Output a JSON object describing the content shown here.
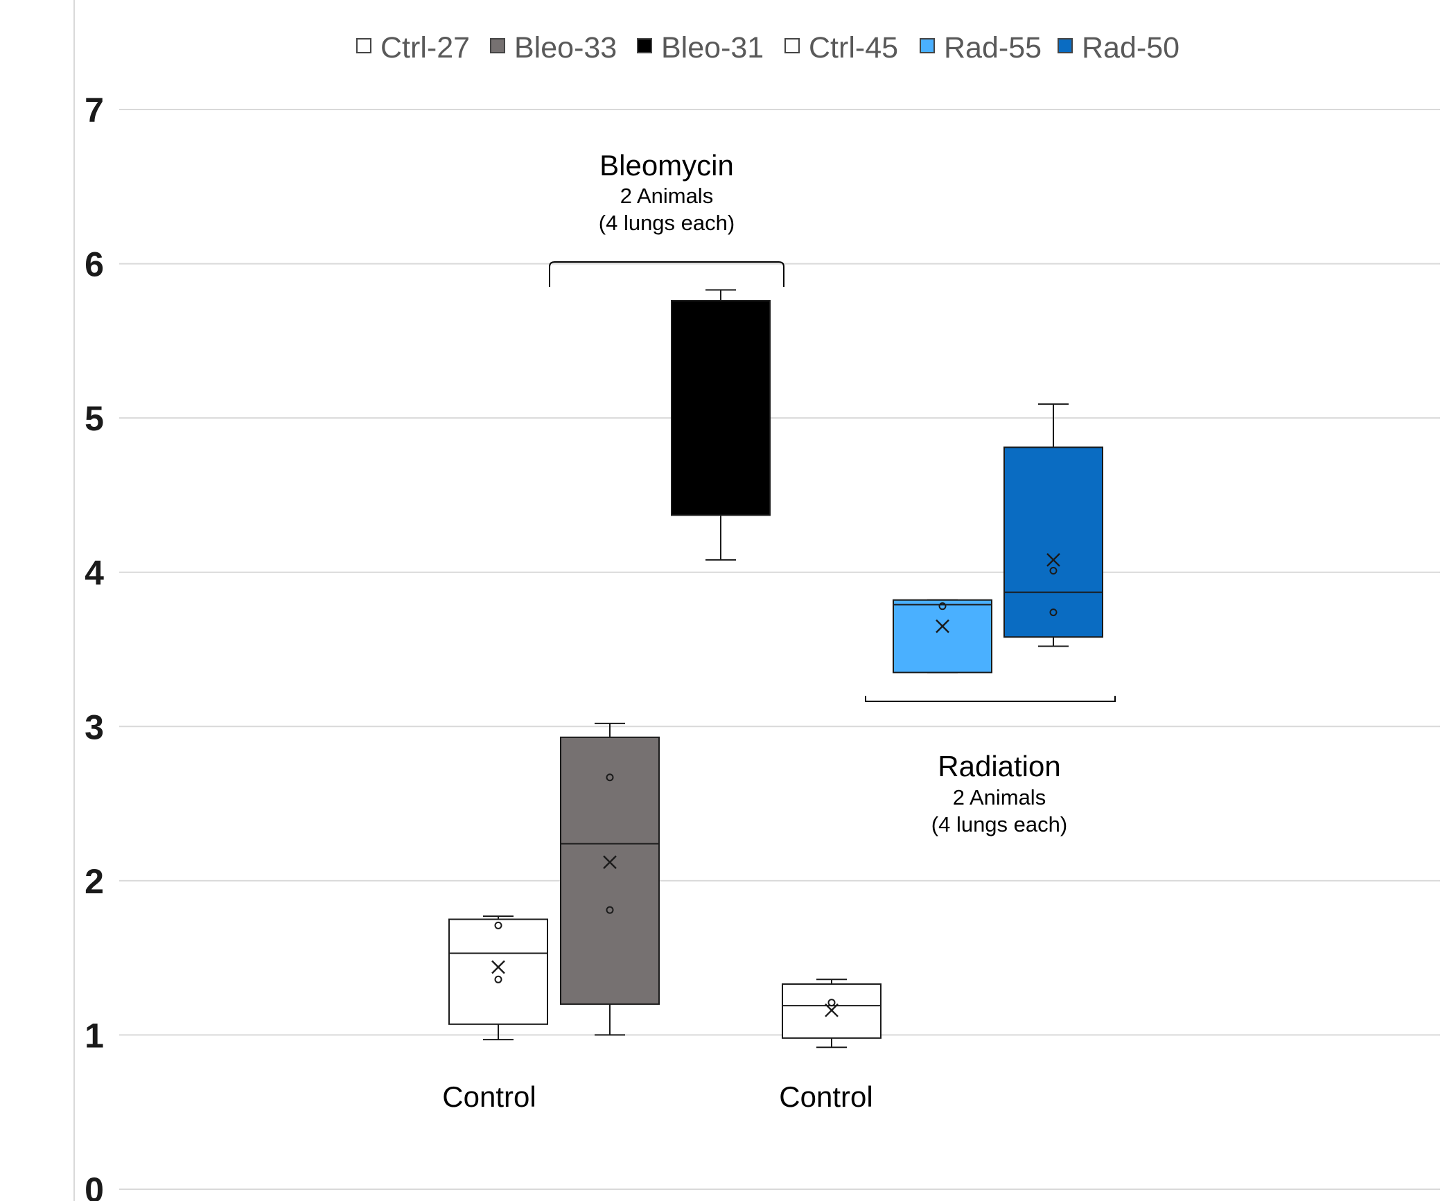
{
  "chart_data": {
    "type": "box",
    "legend_position": "top-center",
    "grid": true,
    "y_ticks": [
      "0",
      "1",
      "2",
      "3",
      "4",
      "5",
      "6",
      "7"
    ],
    "ylim": [
      0,
      7
    ],
    "series": [
      {
        "name": "Ctrl-27",
        "color": "#ffffff",
        "whisker_low": 0.97,
        "q1": 1.07,
        "median": 1.53,
        "q3": 1.75,
        "whisker_high": 1.77,
        "mean": 1.44,
        "points": [
          1.71,
          1.36
        ]
      },
      {
        "name": "Bleo-33",
        "color": "#767171",
        "whisker_low": 1.0,
        "q1": 1.2,
        "median": 2.24,
        "q3": 2.93,
        "whisker_high": 3.02,
        "mean": 2.12,
        "points": [
          2.67,
          1.81
        ]
      },
      {
        "name": "Bleo-31",
        "color": "#000000",
        "whisker_low": 4.08,
        "q1": 4.37,
        "median": 5.76,
        "q3": 5.76,
        "whisker_high": 5.83,
        "mean": null,
        "points": []
      },
      {
        "name": "Ctrl-45",
        "color": "#ffffff",
        "whisker_low": 0.92,
        "q1": 0.98,
        "median": 1.19,
        "q3": 1.33,
        "whisker_high": 1.36,
        "mean": 1.16,
        "points": [
          1.21
        ]
      },
      {
        "name": "Rad-55",
        "color": "#4ab0ff",
        "whisker_low": 3.35,
        "q1": 3.35,
        "median": 3.79,
        "q3": 3.82,
        "whisker_high": 3.82,
        "mean": 3.65,
        "points": [
          3.78
        ]
      },
      {
        "name": "Rad-50",
        "color": "#0a6cc2",
        "whisker_low": 3.52,
        "q1": 3.58,
        "median": 3.87,
        "q3": 4.81,
        "whisker_high": 5.09,
        "mean": 4.08,
        "points": [
          4.01,
          3.74
        ]
      }
    ],
    "annotations": {
      "bleomycin": {
        "title": "Bleomycin",
        "line1": "2 Animals",
        "line2": "(4 lungs each)"
      },
      "radiation": {
        "title": "Radiation",
        "line1": "2 Animals",
        "line2": "(4 lungs each)"
      },
      "control_1": "Control",
      "control_2": "Control"
    }
  }
}
